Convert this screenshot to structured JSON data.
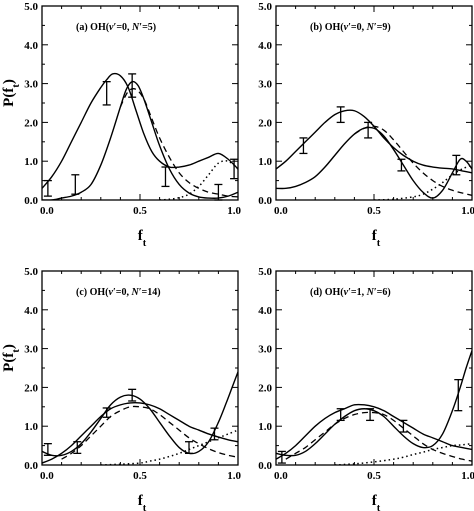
{
  "chart_data": [
    {
      "type": "line",
      "panel_label": "(a) OH(v′=0, N′=5)",
      "xlabel": "f_t",
      "ylabel": "P(f_t)",
      "xlim": [
        0,
        1
      ],
      "ylim": [
        0,
        5
      ],
      "x_ticks": [
        "0.0",
        "0.5",
        "1.0"
      ],
      "y_ticks": [
        "0.0",
        "1.0",
        "2.0",
        "3.0",
        "4.0",
        "5.0"
      ],
      "series": [
        {
          "style": "solid",
          "x": [
            0,
            0.05,
            0.1,
            0.15,
            0.2,
            0.25,
            0.3,
            0.33,
            0.36,
            0.4,
            0.44,
            0.48,
            0.52,
            0.56,
            0.6,
            0.65,
            0.7,
            0.75,
            0.8,
            0.85,
            0.9,
            0.95,
            1.0
          ],
          "y": [
            0.3,
            0.6,
            1.0,
            1.5,
            2.0,
            2.5,
            2.9,
            3.1,
            3.25,
            3.2,
            2.9,
            2.3,
            1.7,
            1.25,
            1.0,
            0.85,
            0.85,
            0.9,
            1.0,
            1.1,
            1.2,
            1.05,
            0.8
          ]
        },
        {
          "style": "solid",
          "x": [
            0,
            0.05,
            0.1,
            0.15,
            0.2,
            0.25,
            0.3,
            0.35,
            0.4,
            0.43,
            0.46,
            0.49,
            0.52,
            0.56,
            0.6,
            0.65,
            0.7,
            0.75,
            0.8,
            0.85,
            0.9,
            0.95,
            1.0
          ],
          "y": [
            0,
            0,
            0.05,
            0.1,
            0.2,
            0.4,
            0.9,
            1.6,
            2.4,
            2.85,
            3.05,
            2.95,
            2.6,
            2.0,
            1.4,
            0.8,
            0.4,
            0.18,
            0.08,
            0.05,
            0.05,
            0.1,
            0.2
          ]
        },
        {
          "style": "dashed",
          "x": [
            0.4,
            0.44,
            0.48,
            0.52,
            0.56,
            0.6,
            0.65,
            0.7,
            0.75,
            0.8,
            0.85,
            0.9,
            0.95,
            1.0
          ],
          "y": [
            2.4,
            2.8,
            2.85,
            2.6,
            2.1,
            1.6,
            1.1,
            0.7,
            0.45,
            0.3,
            0.2,
            0.15,
            0.1,
            0.08
          ]
        },
        {
          "style": "dotted",
          "x": [
            0.6,
            0.65,
            0.7,
            0.75,
            0.8,
            0.85,
            0.9,
            0.95,
            1.0
          ],
          "y": [
            0,
            0.02,
            0.06,
            0.15,
            0.35,
            0.65,
            0.95,
            1.0,
            0.8
          ]
        }
      ],
      "error_bars": [
        {
          "x": 0.03,
          "y": 0.3,
          "err": 0.2
        },
        {
          "x": 0.17,
          "y": 0.4,
          "err": 0.25
        },
        {
          "x": 0.33,
          "y": 2.75,
          "err": 0.3
        },
        {
          "x": 0.46,
          "y": 2.95,
          "err": 0.3
        },
        {
          "x": 0.63,
          "y": 0.6,
          "err": 0.25
        },
        {
          "x": 0.9,
          "y": 0.2,
          "err": 0.2
        },
        {
          "x": 0.98,
          "y": 0.8,
          "err": 0.25
        }
      ]
    },
    {
      "type": "line",
      "panel_label": "(b) OH(v′=0, N′=9)",
      "xlabel": "f_t",
      "ylabel": "",
      "xlim": [
        0,
        1
      ],
      "ylim": [
        0,
        5
      ],
      "x_ticks": [
        "0.0",
        "0.5",
        "1.0"
      ],
      "y_ticks": [
        "0.0",
        "1.0",
        "2.0",
        "3.0",
        "4.0",
        "5.0"
      ],
      "series": [
        {
          "style": "solid",
          "x": [
            0,
            0.05,
            0.1,
            0.15,
            0.2,
            0.25,
            0.3,
            0.35,
            0.4,
            0.45,
            0.5,
            0.55,
            0.6,
            0.65,
            0.7,
            0.75,
            0.8,
            0.85,
            0.9,
            0.95,
            1.0
          ],
          "y": [
            0.8,
            1.0,
            1.25,
            1.5,
            1.75,
            2.0,
            2.2,
            2.3,
            2.3,
            2.15,
            1.9,
            1.6,
            1.35,
            1.15,
            1.0,
            0.9,
            0.85,
            0.82,
            0.8,
            0.75,
            0.7
          ]
        },
        {
          "style": "solid",
          "x": [
            0,
            0.05,
            0.1,
            0.15,
            0.2,
            0.25,
            0.3,
            0.35,
            0.4,
            0.45,
            0.5,
            0.55,
            0.6,
            0.65,
            0.7,
            0.75,
            0.8,
            0.85,
            0.9,
            0.94,
            0.97,
            1.0
          ],
          "y": [
            0.3,
            0.3,
            0.35,
            0.45,
            0.6,
            0.85,
            1.15,
            1.45,
            1.7,
            1.85,
            1.85,
            1.65,
            1.3,
            0.9,
            0.5,
            0.2,
            0.05,
            0.25,
            0.7,
            1.05,
            1.0,
            0.8
          ]
        },
        {
          "style": "dashed",
          "x": [
            0.4,
            0.45,
            0.5,
            0.55,
            0.6,
            0.65,
            0.7,
            0.75,
            0.8,
            0.85,
            0.9,
            0.95,
            1.0
          ],
          "y": [
            1.7,
            1.85,
            1.9,
            1.8,
            1.55,
            1.25,
            0.95,
            0.7,
            0.5,
            0.35,
            0.25,
            0.18,
            0.12
          ]
        },
        {
          "style": "dotted",
          "x": [
            0.5,
            0.6,
            0.7,
            0.75,
            0.8,
            0.85,
            0.9,
            0.95,
            1.0
          ],
          "y": [
            0,
            0.02,
            0.08,
            0.15,
            0.28,
            0.45,
            0.65,
            0.8,
            0.9
          ]
        }
      ],
      "error_bars": [
        {
          "x": 0.14,
          "y": 1.4,
          "err": 0.2
        },
        {
          "x": 0.33,
          "y": 2.2,
          "err": 0.2
        },
        {
          "x": 0.47,
          "y": 1.8,
          "err": 0.2
        },
        {
          "x": 0.64,
          "y": 0.9,
          "err": 0.15
        },
        {
          "x": 0.92,
          "y": 0.9,
          "err": 0.25
        }
      ]
    },
    {
      "type": "line",
      "panel_label": "(c) OH(v′=0, N′=14)",
      "xlabel": "f_t",
      "ylabel": "P(f_t)",
      "xlim": [
        0,
        1
      ],
      "ylim": [
        0,
        5
      ],
      "x_ticks": [
        "0.0",
        "0.5",
        "1.0"
      ],
      "y_ticks": [
        "0.0",
        "1.0",
        "2.0",
        "3.0",
        "4.0",
        "5.0"
      ],
      "series": [
        {
          "style": "solid",
          "x": [
            0,
            0.05,
            0.1,
            0.15,
            0.2,
            0.25,
            0.3,
            0.35,
            0.4,
            0.45,
            0.5,
            0.55,
            0.6,
            0.65,
            0.7,
            0.75,
            0.8,
            0.85,
            0.9,
            0.95,
            1.0
          ],
          "y": [
            0.05,
            0.15,
            0.3,
            0.5,
            0.75,
            1.0,
            1.25,
            1.45,
            1.55,
            1.6,
            1.6,
            1.55,
            1.45,
            1.3,
            1.15,
            1.0,
            0.9,
            0.8,
            0.72,
            0.65,
            0.6
          ]
        },
        {
          "style": "solid",
          "x": [
            0,
            0.05,
            0.1,
            0.15,
            0.2,
            0.25,
            0.3,
            0.35,
            0.4,
            0.45,
            0.5,
            0.55,
            0.6,
            0.65,
            0.7,
            0.75,
            0.8,
            0.85,
            0.9,
            0.94,
            0.97,
            1.0
          ],
          "y": [
            0.35,
            0.25,
            0.25,
            0.35,
            0.55,
            0.85,
            1.2,
            1.55,
            1.75,
            1.8,
            1.7,
            1.45,
            1.1,
            0.75,
            0.45,
            0.3,
            0.35,
            0.6,
            1.1,
            1.6,
            2.0,
            2.4
          ]
        },
        {
          "style": "dashed",
          "x": [
            0.1,
            0.15,
            0.2,
            0.25,
            0.3,
            0.35,
            0.4,
            0.45,
            0.5,
            0.55,
            0.6,
            0.65,
            0.7,
            0.75,
            0.8,
            0.85,
            0.9,
            0.95,
            1.0
          ],
          "y": [
            0.15,
            0.3,
            0.5,
            0.75,
            1.0,
            1.25,
            1.4,
            1.5,
            1.5,
            1.45,
            1.3,
            1.1,
            0.9,
            0.7,
            0.55,
            0.42,
            0.32,
            0.25,
            0.2
          ]
        },
        {
          "style": "dotted",
          "x": [
            0.3,
            0.4,
            0.5,
            0.55,
            0.6,
            0.65,
            0.7,
            0.75,
            0.8,
            0.85,
            0.9,
            0.95,
            1.0
          ],
          "y": [
            0,
            0.02,
            0.05,
            0.1,
            0.15,
            0.22,
            0.3,
            0.4,
            0.5,
            0.6,
            0.7,
            0.8,
            0.9
          ]
        }
      ],
      "error_bars": [
        {
          "x": 0.03,
          "y": 0.4,
          "err": 0.15
        },
        {
          "x": 0.18,
          "y": 0.45,
          "err": 0.15
        },
        {
          "x": 0.33,
          "y": 1.35,
          "err": 0.12
        },
        {
          "x": 0.46,
          "y": 1.8,
          "err": 0.15
        },
        {
          "x": 0.75,
          "y": 0.45,
          "err": 0.15
        },
        {
          "x": 0.88,
          "y": 0.8,
          "err": 0.15
        }
      ]
    },
    {
      "type": "line",
      "panel_label": "(d) OH(v′=1, N′=6)",
      "xlabel": "f_t",
      "ylabel": "",
      "xlim": [
        0,
        1
      ],
      "ylim": [
        0,
        5
      ],
      "x_ticks": [
        "0.0",
        "0.5",
        "1.0"
      ],
      "y_ticks": [
        "0.0",
        "1.0",
        "2.0",
        "3.0",
        "4.0",
        "5.0"
      ],
      "series": [
        {
          "style": "solid",
          "x": [
            0,
            0.05,
            0.1,
            0.15,
            0.2,
            0.25,
            0.3,
            0.35,
            0.4,
            0.45,
            0.5,
            0.55,
            0.6,
            0.65,
            0.7,
            0.75,
            0.8,
            0.85,
            0.9,
            0.95,
            1.0
          ],
          "y": [
            0.15,
            0.3,
            0.5,
            0.75,
            1.0,
            1.2,
            1.35,
            1.45,
            1.55,
            1.55,
            1.5,
            1.4,
            1.25,
            1.1,
            0.95,
            0.8,
            0.7,
            0.6,
            0.5,
            0.45,
            0.4
          ]
        },
        {
          "style": "solid",
          "x": [
            0,
            0.05,
            0.1,
            0.15,
            0.2,
            0.25,
            0.3,
            0.35,
            0.4,
            0.45,
            0.5,
            0.55,
            0.6,
            0.65,
            0.7,
            0.75,
            0.8,
            0.85,
            0.9,
            0.94,
            0.97,
            1.0
          ],
          "y": [
            0.3,
            0.25,
            0.25,
            0.35,
            0.55,
            0.8,
            1.05,
            1.25,
            1.4,
            1.45,
            1.4,
            1.25,
            1.0,
            0.75,
            0.55,
            0.45,
            0.5,
            0.8,
            1.4,
            2.0,
            2.5,
            2.95
          ]
        },
        {
          "style": "dashed",
          "x": [
            0.05,
            0.1,
            0.15,
            0.2,
            0.25,
            0.3,
            0.35,
            0.4,
            0.45,
            0.5,
            0.55,
            0.6,
            0.65,
            0.7,
            0.75,
            0.8,
            0.85,
            0.9,
            0.95,
            1.0
          ],
          "y": [
            0.15,
            0.3,
            0.45,
            0.65,
            0.85,
            1.05,
            1.2,
            1.3,
            1.35,
            1.35,
            1.3,
            1.15,
            0.95,
            0.75,
            0.55,
            0.4,
            0.3,
            0.22,
            0.15,
            0.1
          ]
        },
        {
          "style": "dotted",
          "x": [
            0.3,
            0.4,
            0.5,
            0.6,
            0.65,
            0.7,
            0.75,
            0.8,
            0.85,
            0.9,
            0.95,
            1.0
          ],
          "y": [
            0,
            0.03,
            0.08,
            0.15,
            0.2,
            0.27,
            0.33,
            0.4,
            0.45,
            0.5,
            0.52,
            0.55
          ]
        }
      ],
      "error_bars": [
        {
          "x": 0.03,
          "y": 0.2,
          "err": 0.15
        },
        {
          "x": 0.33,
          "y": 1.3,
          "err": 0.15
        },
        {
          "x": 0.48,
          "y": 1.3,
          "err": 0.15
        },
        {
          "x": 0.65,
          "y": 1.0,
          "err": 0.15
        },
        {
          "x": 0.93,
          "y": 1.8,
          "err": 0.4
        }
      ]
    }
  ]
}
